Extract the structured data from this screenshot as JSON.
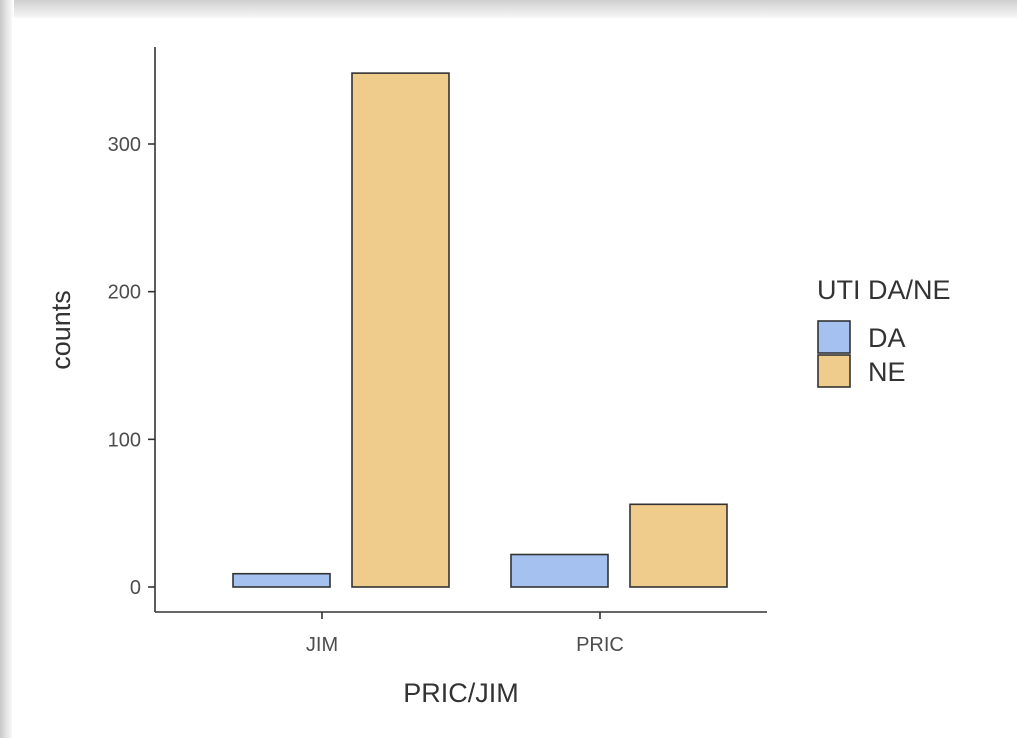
{
  "chart_data": {
    "type": "bar",
    "categories": [
      "JIM",
      "PRIC"
    ],
    "series": [
      {
        "name": "DA",
        "color": "#a4c1ef",
        "values": [
          9,
          22
        ]
      },
      {
        "name": "NE",
        "color": "#f0cc8c",
        "values": [
          348,
          56
        ]
      }
    ],
    "xlabel": "PRIC/JIM",
    "ylabel": "counts",
    "yticks": [
      0,
      100,
      200,
      300
    ],
    "ylim": [
      -15,
      370
    ],
    "legend": {
      "title": "UTI DA/NE",
      "position": "right"
    },
    "grid": false
  }
}
